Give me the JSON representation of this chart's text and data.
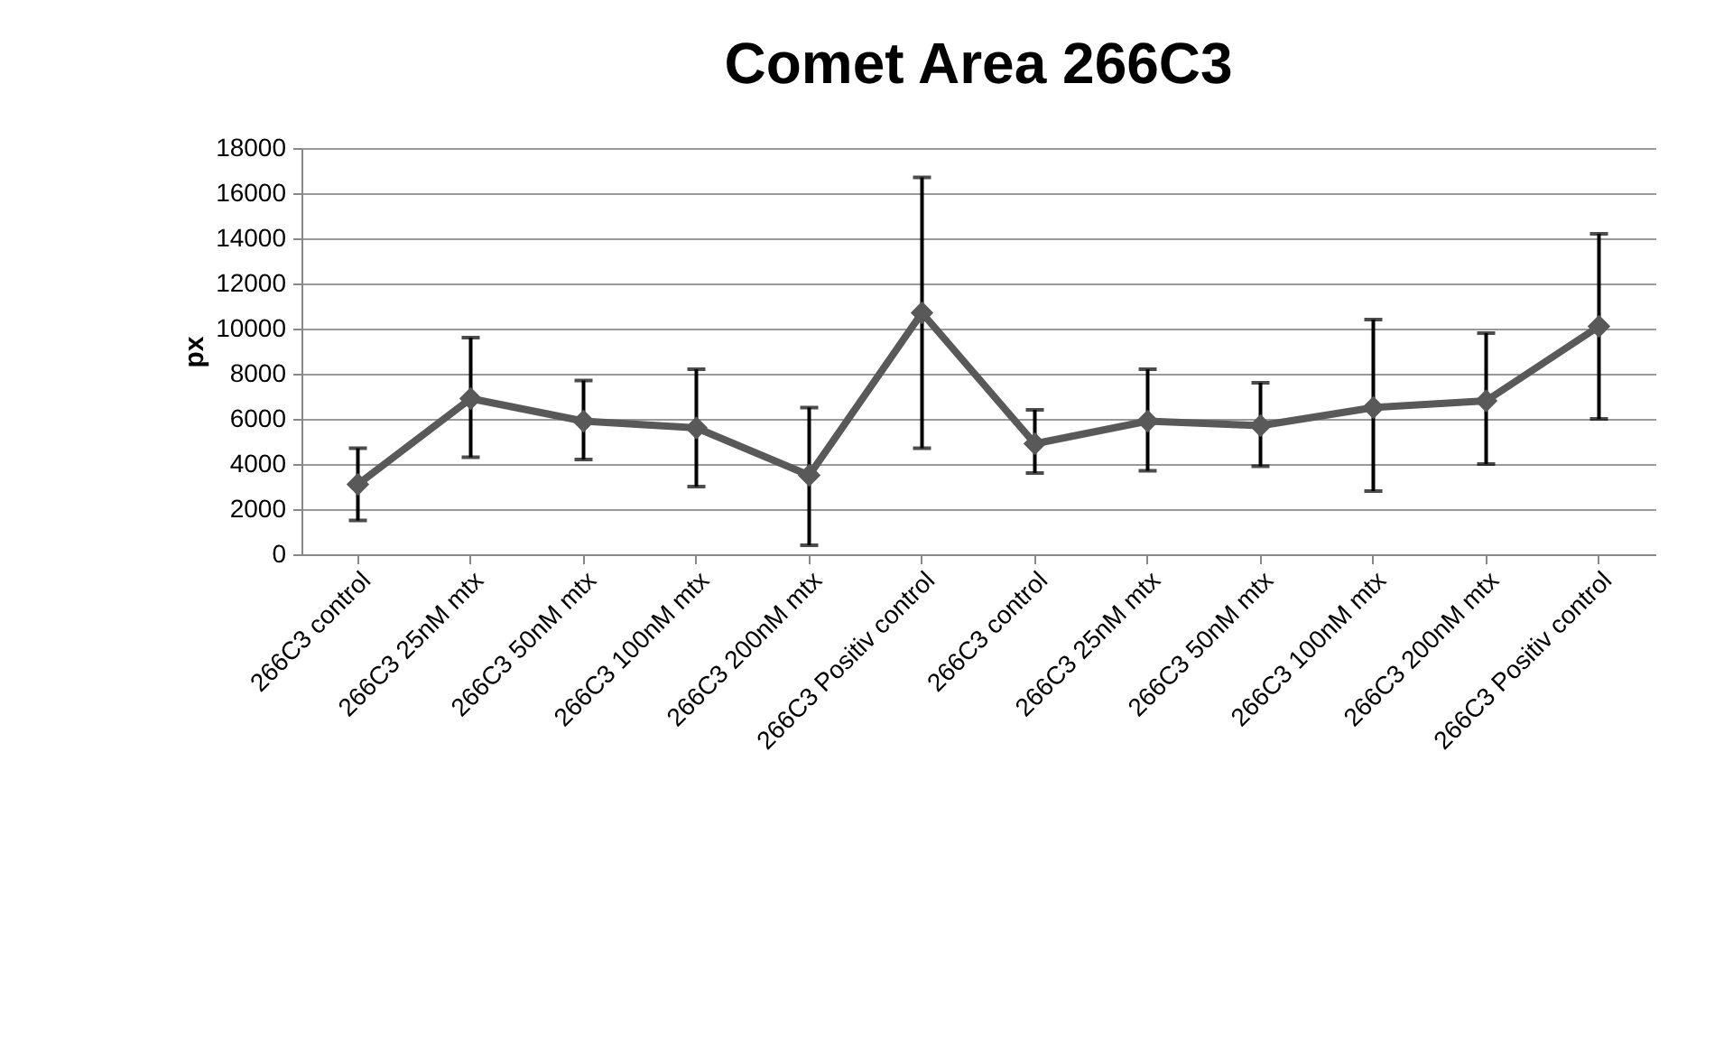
{
  "chart_data": {
    "type": "line",
    "title": "Comet Area 266C3",
    "ylabel": "px",
    "categories": [
      "266C3 control",
      "266C3 25nM mtx",
      "266C3 50nM mtx",
      "266C3 100nM mtx",
      "266C3 200nM mtx",
      "266C3 Positiv control",
      "266C3 control",
      "266C3 25nM mtx",
      "266C3 50nM mtx",
      "266C3 100nM mtx",
      "266C3 200nM mtx",
      "266C3 Positiv control"
    ],
    "series": [
      {
        "color": "#595959",
        "values": [
          3100,
          6900,
          5900,
          5600,
          3500,
          10700,
          4900,
          5900,
          5700,
          6500,
          6800,
          10100
        ],
        "errors": [
          [
            1500,
            4700
          ],
          [
            4300,
            9600
          ],
          [
            4200,
            7700
          ],
          [
            3000,
            8200
          ],
          [
            400,
            6500
          ],
          [
            4700,
            16700
          ],
          [
            3600,
            6400
          ],
          [
            3700,
            8200
          ],
          [
            3900,
            7600
          ],
          [
            2800,
            10400
          ],
          [
            4000,
            9800
          ],
          [
            6000,
            14200
          ]
        ]
      }
    ],
    "ylim": [
      0,
      18000
    ],
    "yticks": [
      0,
      2000,
      4000,
      6000,
      8000,
      10000,
      12000,
      14000,
      16000,
      18000
    ],
    "grid": "y",
    "marker": "diamond",
    "line_style": "solid"
  }
}
